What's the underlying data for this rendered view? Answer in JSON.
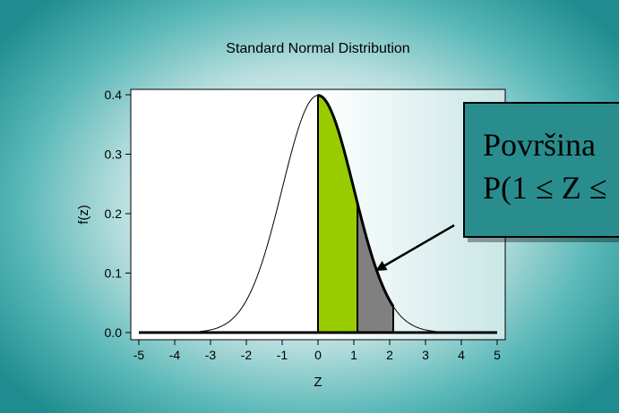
{
  "slide": {
    "callout_lines": [
      "Površina",
      "P(1 ≤ Z ≤"
    ],
    "colors": {
      "background_edge": "#1f8d8f",
      "callout_fill": "#2a8d8d",
      "area_1": "#99cc00",
      "area_2": "#808080"
    }
  },
  "chart_data": {
    "type": "area",
    "title": "Standard Normal Distribution",
    "xlabel": "Z",
    "ylabel": "f(z)",
    "xlim": [
      -5,
      5
    ],
    "ylim": [
      0,
      0.4
    ],
    "x_ticks": [
      "-5",
      "-4",
      "-3",
      "-2",
      "-1",
      "0",
      "1",
      "2",
      "3",
      "4",
      "5"
    ],
    "y_ticks": [
      "0.0",
      "0.1",
      "0.2",
      "0.3",
      "0.4"
    ],
    "curve": {
      "function": "standard normal density",
      "mean": 0,
      "sd": 1
    },
    "shaded_regions": [
      {
        "from": 0,
        "to": 1.1,
        "color": "#99cc00"
      },
      {
        "from": 1.1,
        "to": 2.1,
        "color": "#808080"
      }
    ],
    "grid": false,
    "legend": "none"
  }
}
